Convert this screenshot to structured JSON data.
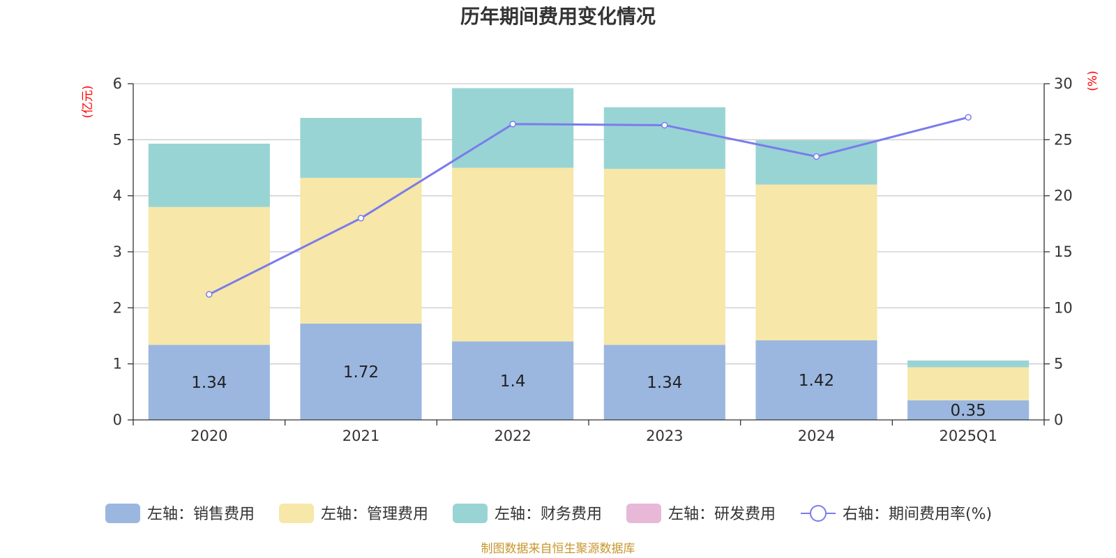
{
  "chart_data": {
    "type": "bar",
    "title": "历年期间费用变化情况",
    "categories": [
      "2020",
      "2021",
      "2022",
      "2023",
      "2024",
      "2025Q1"
    ],
    "left_axis": {
      "unit_label": "(亿元)",
      "ylim": [
        0,
        6
      ],
      "ticks": [
        0,
        1,
        2,
        3,
        4,
        5,
        6
      ]
    },
    "right_axis": {
      "unit_label": "(%)",
      "ylim": [
        0,
        30
      ],
      "ticks": [
        0,
        5,
        10,
        15,
        20,
        25,
        30
      ]
    },
    "series": [
      {
        "name": "左轴：销售费用",
        "type": "bar",
        "axis": "left",
        "color": "#9bb7e0",
        "values": [
          1.34,
          1.72,
          1.4,
          1.34,
          1.42,
          0.35
        ],
        "labels": [
          "1.34",
          "1.72",
          "1.4",
          "1.34",
          "1.42",
          "0.35"
        ]
      },
      {
        "name": "左轴：管理费用",
        "type": "bar",
        "axis": "left",
        "color": "#f7e7a8",
        "values": [
          2.46,
          2.6,
          3.1,
          3.14,
          2.78,
          0.59
        ]
      },
      {
        "name": "左轴：财务费用",
        "type": "bar",
        "axis": "left",
        "color": "#98d4d4",
        "values": [
          1.13,
          1.07,
          1.42,
          1.1,
          0.79,
          0.12
        ]
      },
      {
        "name": "左轴：研发费用",
        "type": "bar",
        "axis": "left",
        "color": "#e8b8d8",
        "values": [
          0,
          0,
          0,
          0,
          0,
          0
        ]
      },
      {
        "name": "右轴：期间费用率(%)",
        "type": "line",
        "axis": "right",
        "color": "#7b7bed",
        "values": [
          11.2,
          18,
          26.4,
          26.3,
          23.5,
          27
        ]
      }
    ]
  },
  "footer": {
    "source": "制图数据来自恒生聚源数据库"
  }
}
